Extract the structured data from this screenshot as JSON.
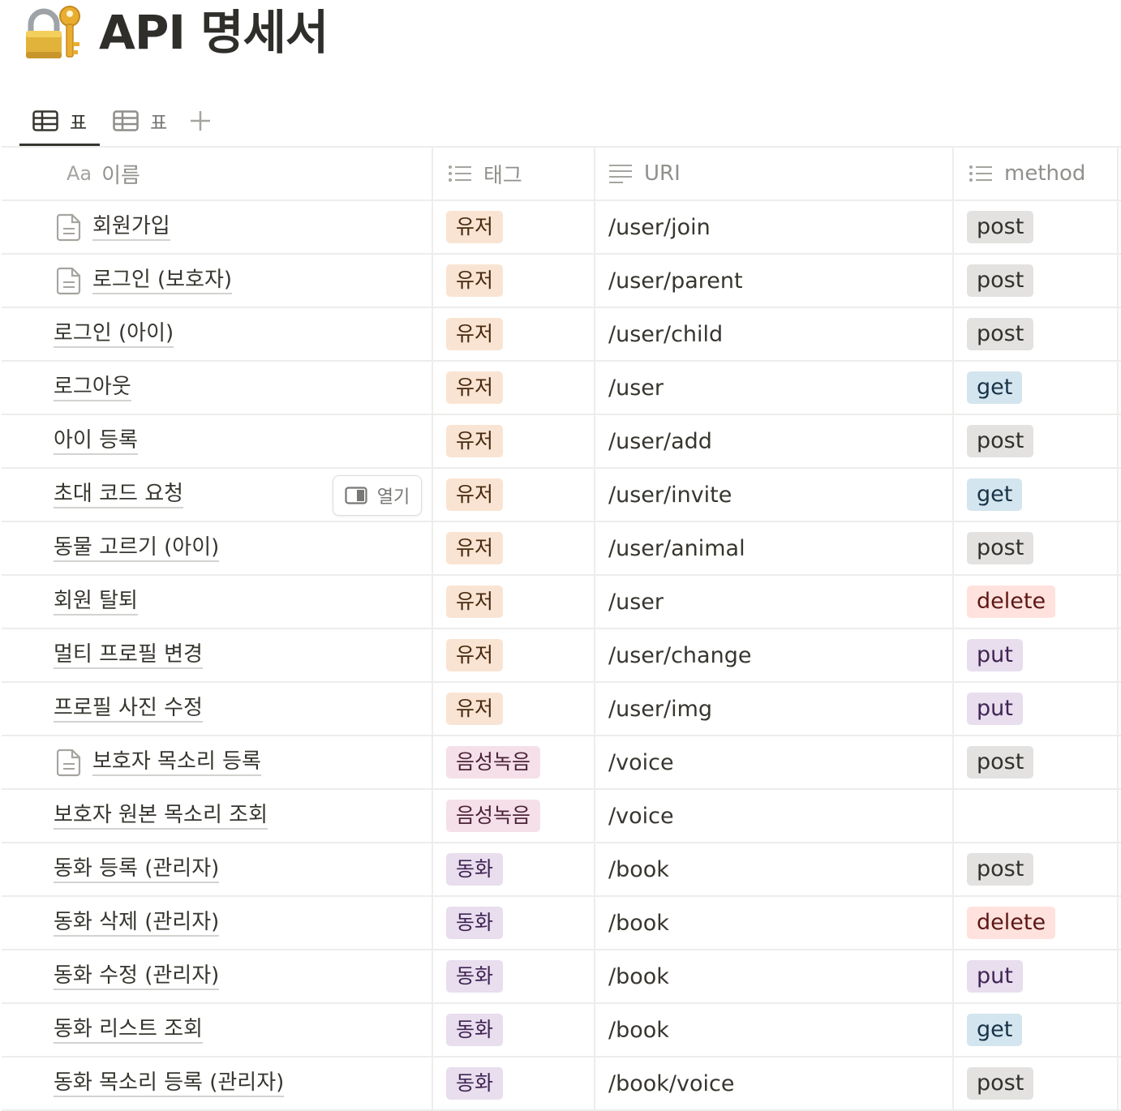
{
  "page": {
    "title": "API 명세서",
    "icon": "lock-with-key-icon"
  },
  "views": [
    {
      "label": "표",
      "icon": "table-icon",
      "active": true
    },
    {
      "label": "표",
      "icon": "table-icon",
      "active": false
    }
  ],
  "add_view_icon": "plus-icon",
  "columns": {
    "name": {
      "prefix": "Aa",
      "label": "이름"
    },
    "tag": {
      "label": "태그",
      "icon": "multi-select-icon"
    },
    "uri": {
      "label": "URI",
      "icon": "text-lines-icon"
    },
    "method": {
      "label": "method",
      "icon": "multi-select-icon"
    }
  },
  "open_button": {
    "label": "열기",
    "icon": "side-peek-icon"
  },
  "tag_colors": {
    "유저": {
      "bg": "#f9e4d3",
      "fg": "#49290e"
    },
    "음성녹음": {
      "bg": "#f5e0e9",
      "fg": "#4c2337"
    },
    "동화": {
      "bg": "#e8deee",
      "fg": "#412454"
    }
  },
  "method_colors": {
    "post": {
      "bg": "#e3e2e0",
      "fg": "#32302c"
    },
    "get": {
      "bg": "#d3e5ef",
      "fg": "#183347"
    },
    "delete": {
      "bg": "#ffe2dd",
      "fg": "#5d1715"
    },
    "put": {
      "bg": "#e8deee",
      "fg": "#412454"
    }
  },
  "rows": [
    {
      "name": "회원가입",
      "page_icon": true,
      "tag": "유저",
      "uri": "/user/join",
      "method": "post"
    },
    {
      "name": "로그인 (보호자)",
      "page_icon": true,
      "tag": "유저",
      "uri": "/user/parent",
      "method": "post"
    },
    {
      "name": "로그인 (아이)",
      "page_icon": false,
      "tag": "유저",
      "uri": "/user/child",
      "method": "post"
    },
    {
      "name": "로그아웃",
      "page_icon": false,
      "tag": "유저",
      "uri": "/user",
      "method": "get"
    },
    {
      "name": "아이 등록",
      "page_icon": false,
      "tag": "유저",
      "uri": "/user/add",
      "method": "post"
    },
    {
      "name": "초대 코드 요청",
      "page_icon": false,
      "open_button": true,
      "tag": "유저",
      "uri": "/user/invite",
      "method": "get"
    },
    {
      "name": "동물 고르기 (아이)",
      "page_icon": false,
      "tag": "유저",
      "uri": "/user/animal",
      "method": "post"
    },
    {
      "name": "회원 탈퇴",
      "page_icon": false,
      "tag": "유저",
      "uri": "/user",
      "method": "delete"
    },
    {
      "name": "멀티 프로필 변경",
      "page_icon": false,
      "tag": "유저",
      "uri": "/user/change",
      "method": "put"
    },
    {
      "name": "프로필 사진 수정",
      "page_icon": false,
      "tag": "유저",
      "uri": "/user/img",
      "method": "put"
    },
    {
      "name": "보호자 목소리 등록",
      "page_icon": true,
      "tag": "음성녹음",
      "uri": "/voice",
      "method": "post"
    },
    {
      "name": "보호자 원본 목소리 조회",
      "page_icon": false,
      "tag": "음성녹음",
      "uri": "/voice",
      "method": ""
    },
    {
      "name": "동화 등록 (관리자)",
      "page_icon": false,
      "tag": "동화",
      "uri": "/book",
      "method": "post"
    },
    {
      "name": "동화 삭제 (관리자)",
      "page_icon": false,
      "tag": "동화",
      "uri": "/book",
      "method": "delete"
    },
    {
      "name": "동화 수정 (관리자)",
      "page_icon": false,
      "tag": "동화",
      "uri": "/book",
      "method": "put"
    },
    {
      "name": "동화 리스트 조회",
      "page_icon": false,
      "tag": "동화",
      "uri": "/book",
      "method": "get"
    },
    {
      "name": "동화 목소리 등록 (관리자)",
      "page_icon": false,
      "tag": "동화",
      "uri": "/book/voice",
      "method": "post"
    }
  ]
}
